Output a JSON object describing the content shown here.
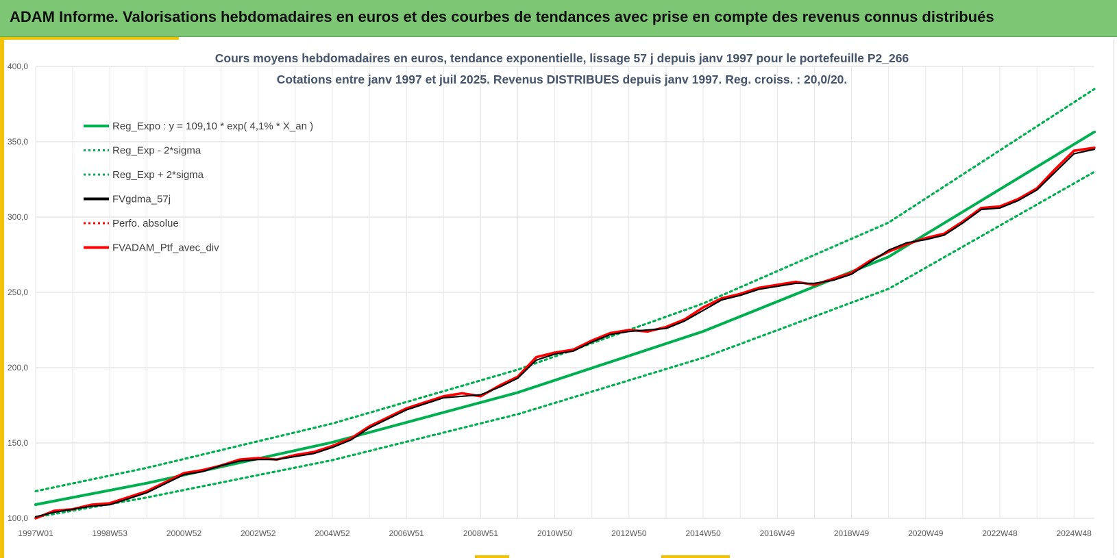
{
  "header": {
    "title": "ADAM Informe. Valorisations hebdomadaires en euros et des courbes de tendances avec prise en compte des revenus connus distribués"
  },
  "colors": {
    "header_bg": "#7dc774",
    "accent": "#f2c300",
    "trend": "#00b050",
    "fvgdma": "#000000",
    "perfo": "#ff0000",
    "portfolio": "#ff0000",
    "title_text": "#44546a"
  },
  "chart_data": {
    "type": "line",
    "title_line1": "Cours moyens hebdomadaires  en euros, tendance exponentielle, lissage 57 j depuis janv 1997 pour le portefeuille P2_266",
    "title_line2": "Cotations entre janv 1997 et juil 2025. Revenus DISTRIBUES depuis janv 1997. Reg. croiss. : 20,0/20.",
    "xlabel": "",
    "ylabel": "",
    "ylim": [
      100,
      400
    ],
    "xlim": [
      1997.0,
      2025.55
    ],
    "grid": true,
    "legend_position": "top-left",
    "y_ticks": [
      "100,0",
      "150,0",
      "200,0",
      "250,0",
      "300,0",
      "350,0",
      "400,0"
    ],
    "x_ticks": [
      {
        "label": "1997W01",
        "t": 1997.0
      },
      {
        "label": "1998W53",
        "t": 1999.0
      },
      {
        "label": "2000W52",
        "t": 2001.0
      },
      {
        "label": "2002W52",
        "t": 2003.0
      },
      {
        "label": "2004W52",
        "t": 2005.0
      },
      {
        "label": "2006W51",
        "t": 2007.0
      },
      {
        "label": "2008W51",
        "t": 2009.0
      },
      {
        "label": "2010W50",
        "t": 2011.0
      },
      {
        "label": "2012W50",
        "t": 2013.0
      },
      {
        "label": "2014W50",
        "t": 2015.0
      },
      {
        "label": "2016W49",
        "t": 2017.0
      },
      {
        "label": "2018W49",
        "t": 2019.0
      },
      {
        "label": "2020W49",
        "t": 2021.0
      },
      {
        "label": "2022W48",
        "t": 2023.0
      },
      {
        "label": "2024W48",
        "t": 2025.0
      }
    ],
    "series": [
      {
        "name": "Reg_Expo : y = 109,10 * exp( 4,1% *  X_an )",
        "style": "solid-green",
        "x": [
          1997.0,
          2000.0,
          2005.0,
          2010.0,
          2015.0,
          2020.0,
          2025.55
        ],
        "y": [
          109.1,
          123.3,
          150.4,
          183.5,
          224.1,
          273.6,
          356.5
        ]
      },
      {
        "name": "Reg_Exp - 2*sigma",
        "style": "dotted-green",
        "x": [
          1997.0,
          2000.0,
          2005.0,
          2010.0,
          2015.0,
          2020.0,
          2025.55
        ],
        "y": [
          100.7,
          113.8,
          138.6,
          169.1,
          206.6,
          252.3,
          330.0
        ]
      },
      {
        "name": "Reg_Exp + 2*sigma",
        "style": "dotted-green",
        "x": [
          1997.0,
          2000.0,
          2005.0,
          2010.0,
          2015.0,
          2020.0,
          2025.55
        ],
        "y": [
          118.0,
          133.5,
          162.9,
          198.7,
          242.6,
          296.3,
          385.0
        ]
      },
      {
        "name": "FVgdma_57j",
        "style": "solid-black",
        "x": [
          1997.0,
          1997.5,
          1998.0,
          1998.5,
          1999.0,
          1999.5,
          2000.0,
          2000.5,
          2001.0,
          2001.5,
          2002.0,
          2002.5,
          2003.0,
          2003.5,
          2004.0,
          2004.5,
          2005.0,
          2005.5,
          2006.0,
          2006.5,
          2007.0,
          2007.5,
          2008.0,
          2008.5,
          2009.0,
          2009.5,
          2010.0,
          2010.5,
          2011.0,
          2011.5,
          2012.0,
          2012.5,
          2013.0,
          2013.5,
          2014.0,
          2014.5,
          2015.0,
          2015.5,
          2016.0,
          2016.5,
          2017.0,
          2017.5,
          2018.0,
          2018.5,
          2019.0,
          2019.5,
          2020.0,
          2020.5,
          2021.0,
          2021.5,
          2022.0,
          2022.5,
          2023.0,
          2023.5,
          2024.0,
          2024.5,
          2025.0,
          2025.55
        ],
        "y": [
          101,
          104,
          106,
          108,
          109,
          113,
          117,
          123,
          129,
          131,
          135,
          138,
          139,
          139,
          141,
          143,
          147,
          152,
          160,
          166,
          172,
          176,
          180,
          181,
          182,
          187,
          193,
          205,
          209,
          211,
          217,
          222,
          224,
          225,
          226,
          231,
          238,
          245,
          248,
          252,
          254,
          256,
          256,
          258,
          262,
          270,
          278,
          283,
          285,
          288,
          296,
          305,
          306,
          311,
          318,
          330,
          342,
          345
        ]
      },
      {
        "name": "Perfo. absolue",
        "style": "dotted-red",
        "x": [
          1997.0,
          1999.0,
          2001.0,
          2003.0,
          2005.0,
          2007.0,
          2009.0,
          2011.0,
          2013.0,
          2015.0,
          2017.0,
          2019.0,
          2021.0,
          2023.0,
          2025.55
        ],
        "y": [
          101,
          109,
          129,
          139,
          147,
          172,
          182,
          209,
          224,
          238,
          254,
          262,
          285,
          306,
          345
        ]
      },
      {
        "name": "FVADAM_Ptf_avec_div",
        "style": "solid-red",
        "x": [
          1997.0,
          1997.5,
          1998.0,
          1998.5,
          1999.0,
          1999.5,
          2000.0,
          2000.5,
          2001.0,
          2001.5,
          2002.0,
          2002.5,
          2003.0,
          2003.5,
          2004.0,
          2004.5,
          2005.0,
          2005.5,
          2006.0,
          2006.5,
          2007.0,
          2007.5,
          2008.0,
          2008.5,
          2009.0,
          2009.5,
          2010.0,
          2010.5,
          2011.0,
          2011.5,
          2012.0,
          2012.5,
          2013.0,
          2013.5,
          2014.0,
          2014.5,
          2015.0,
          2015.5,
          2016.0,
          2016.5,
          2017.0,
          2017.5,
          2018.0,
          2018.5,
          2019.0,
          2019.5,
          2020.0,
          2020.5,
          2021.0,
          2021.5,
          2022.0,
          2022.5,
          2023.0,
          2023.5,
          2024.0,
          2024.5,
          2025.0,
          2025.55
        ],
        "y": [
          100,
          105,
          106,
          109,
          110,
          114,
          118,
          124,
          130,
          132,
          135,
          139,
          140,
          139,
          142,
          144,
          148,
          153,
          161,
          167,
          173,
          177,
          181,
          183,
          181,
          188,
          194,
          207,
          210,
          212,
          218,
          223,
          225,
          224,
          227,
          232,
          240,
          246,
          249,
          253,
          255,
          257,
          255,
          259,
          263,
          271,
          277,
          282,
          286,
          289,
          297,
          306,
          307,
          312,
          319,
          332,
          344,
          346
        ]
      }
    ]
  }
}
